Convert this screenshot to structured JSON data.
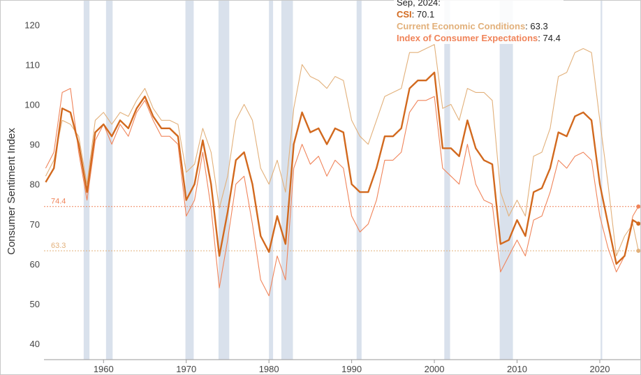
{
  "tooltip": {
    "date": "Sep, 2024:",
    "rows": [
      {
        "name": "CSI",
        "value": "70.1",
        "color": "#d2691e"
      },
      {
        "name": "Current Economic Conditions",
        "value": "63.3",
        "color": "#e2b07a"
      },
      {
        "name": "Index of Consumer Expectations",
        "value": "74.4",
        "color": "#f0845a"
      }
    ]
  },
  "chart_data": {
    "type": "line",
    "title": "",
    "xlabel": "",
    "ylabel": "Consumer Sentiment Index",
    "xlim": [
      1952.8,
      2024.9
    ],
    "ylim": [
      36,
      126
    ],
    "x_ticks": [
      "1960",
      "1970",
      "1980",
      "1990",
      "2000",
      "2010",
      "2020"
    ],
    "y_ticks": [
      "40",
      "50",
      "60",
      "70",
      "80",
      "90",
      "100",
      "110",
      "120"
    ],
    "grid": false,
    "legend": "tooltip top-right",
    "recessions": [
      [
        1957.6,
        1958.3
      ],
      [
        1960.3,
        1961.1
      ],
      [
        1969.9,
        1970.9
      ],
      [
        1973.9,
        1975.2
      ],
      [
        1980.0,
        1980.5
      ],
      [
        1981.5,
        1982.9
      ],
      [
        1990.6,
        1991.2
      ],
      [
        2001.2,
        2001.9
      ],
      [
        2007.9,
        2009.5
      ],
      [
        2020.1,
        2020.3
      ]
    ],
    "reference_lines": [
      {
        "value": 74.4,
        "label": "74.4",
        "color": "#f0845a"
      },
      {
        "value": 63.3,
        "label": "63.3",
        "color": "#e2b07a"
      }
    ],
    "series": [
      {
        "name": "CSI",
        "color": "#d2691e",
        "x": [
          1953,
          1954,
          1955,
          1956,
          1957,
          1958,
          1959,
          1960,
          1961,
          1962,
          1963,
          1964,
          1965,
          1966,
          1967,
          1968,
          1969,
          1970,
          1971,
          1972,
          1973,
          1974,
          1975,
          1976,
          1977,
          1978,
          1979,
          1980,
          1981,
          1982,
          1983,
          1984,
          1985,
          1986,
          1987,
          1988,
          1989,
          1990,
          1991,
          1992,
          1993,
          1994,
          1995,
          1996,
          1997,
          1998,
          1999,
          2000,
          2001,
          2002,
          2003,
          2004,
          2005,
          2006,
          2007,
          2008,
          2009,
          2010,
          2011,
          2012,
          2013,
          2014,
          2015,
          2016,
          2017,
          2018,
          2019,
          2020,
          2021,
          2022,
          2023,
          2024,
          2024.67
        ],
        "y": [
          80.5,
          84,
          99,
          98,
          90,
          78,
          93,
          95,
          92,
          96,
          94,
          99,
          102,
          97,
          94,
          94,
          92,
          76,
          80,
          91,
          80,
          62,
          73,
          86,
          88,
          80,
          67,
          63,
          72,
          65,
          90,
          98,
          93,
          94,
          90,
          94,
          93,
          80,
          78,
          78,
          84,
          92,
          92,
          94,
          104,
          106,
          106,
          108,
          89,
          89,
          87,
          96,
          89,
          86,
          85,
          65,
          66,
          71,
          67,
          78,
          79,
          84,
          93,
          92,
          97,
          98,
          96,
          80,
          70,
          60,
          62,
          71,
          70.1
        ]
      },
      {
        "name": "Current Economic Conditions",
        "color": "#e2b07a",
        "x": [
          1953,
          1954,
          1955,
          1956,
          1957,
          1958,
          1959,
          1960,
          1961,
          1962,
          1963,
          1964,
          1965,
          1966,
          1967,
          1968,
          1969,
          1970,
          1971,
          1972,
          1973,
          1974,
          1975,
          1976,
          1977,
          1978,
          1979,
          1980,
          1981,
          1982,
          1983,
          1984,
          1985,
          1986,
          1987,
          1988,
          1989,
          1990,
          1991,
          1992,
          1993,
          1994,
          1995,
          1996,
          1997,
          1998,
          1999,
          2000,
          2001,
          2002,
          2003,
          2004,
          2005,
          2006,
          2007,
          2008,
          2009,
          2010,
          2011,
          2012,
          2013,
          2014,
          2015,
          2016,
          2017,
          2018,
          2019,
          2020,
          2021,
          2022,
          2023,
          2024,
          2024.67
        ],
        "y": [
          82,
          86,
          96,
          95,
          92,
          80,
          96,
          98,
          95,
          98,
          97,
          101,
          104,
          99,
          96,
          96,
          95,
          83,
          85,
          94,
          88,
          74,
          82,
          96,
          100,
          96,
          84,
          80,
          86,
          78,
          99,
          110,
          107,
          106,
          104,
          107,
          106,
          96,
          92,
          90,
          96,
          102,
          103,
          104,
          113,
          113,
          114,
          115,
          99,
          100,
          96,
          104,
          103,
          103,
          101,
          78,
          72,
          76,
          72,
          87,
          88,
          94,
          107,
          108,
          113,
          114,
          113,
          96,
          80,
          62,
          67,
          70,
          63.3
        ]
      },
      {
        "name": "Index of Consumer Expectations",
        "color": "#f0845a",
        "x": [
          1953,
          1954,
          1955,
          1956,
          1957,
          1958,
          1959,
          1960,
          1961,
          1962,
          1963,
          1964,
          1965,
          1966,
          1967,
          1968,
          1969,
          1970,
          1971,
          1972,
          1973,
          1974,
          1975,
          1976,
          1977,
          1978,
          1979,
          1980,
          1981,
          1982,
          1983,
          1984,
          1985,
          1986,
          1987,
          1988,
          1989,
          1990,
          1991,
          1992,
          1993,
          1994,
          1995,
          1996,
          1997,
          1998,
          1999,
          2000,
          2001,
          2002,
          2003,
          2004,
          2005,
          2006,
          2007,
          2008,
          2009,
          2010,
          2011,
          2012,
          2013,
          2014,
          2015,
          2016,
          2017,
          2018,
          2019,
          2020,
          2021,
          2022,
          2023,
          2024,
          2024.67
        ],
        "y": [
          84,
          88,
          103,
          104,
          88,
          76,
          91,
          95,
          90,
          95,
          92,
          98,
          101,
          96,
          92,
          92,
          90,
          72,
          76,
          88,
          74,
          54,
          66,
          80,
          82,
          70,
          56,
          52,
          62,
          56,
          84,
          90,
          85,
          87,
          82,
          86,
          84,
          72,
          68,
          70,
          76,
          86,
          86,
          88,
          98,
          101,
          101,
          102,
          84,
          82,
          80,
          90,
          80,
          76,
          75,
          58,
          62,
          66,
          62,
          71,
          72,
          78,
          86,
          84,
          87,
          88,
          86,
          72,
          64,
          58,
          62,
          72,
          74.4
        ]
      }
    ]
  }
}
